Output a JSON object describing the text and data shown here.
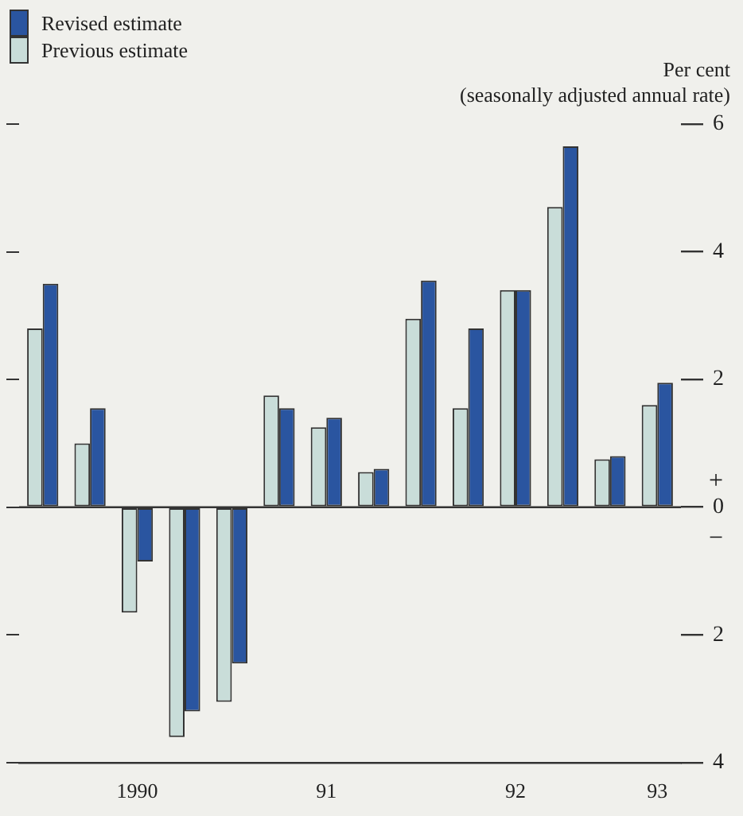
{
  "chart_data": {
    "type": "bar",
    "ylabel": "Per cent",
    "annotations": [
      "(seasonally adjusted annual rate)",
      "+",
      "−"
    ],
    "categories": [
      null,
      null,
      "1990",
      null,
      null,
      null,
      "91",
      null,
      null,
      null,
      "92",
      null,
      null,
      "93"
    ],
    "series": [
      {
        "name": "Previous estimate",
        "color": "#c9ddd9",
        "values": [
          2.8,
          1.0,
          -1.65,
          -3.6,
          -3.05,
          1.75,
          1.25,
          0.55,
          2.95,
          1.55,
          3.4,
          4.7,
          0.75,
          1.6
        ]
      },
      {
        "name": "Revised estimate",
        "color": "#2a55a0",
        "values": [
          3.5,
          1.55,
          -0.85,
          -3.2,
          -2.45,
          1.55,
          1.4,
          0.6,
          3.55,
          2.8,
          3.4,
          5.65,
          0.8,
          1.95
        ]
      }
    ],
    "ylim": [
      -4,
      6
    ],
    "yticks": [
      {
        "value": -4,
        "label": "4"
      },
      {
        "value": -2,
        "label": "2"
      },
      0,
      2,
      4,
      6
    ],
    "ref_lines": [
      {
        "axis": "y",
        "value": 0
      }
    ],
    "grid": false,
    "legend": "top left"
  }
}
